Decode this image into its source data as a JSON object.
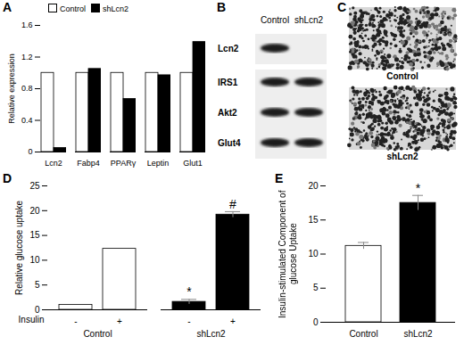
{
  "chart_data": [
    {
      "type": "bar",
      "panel": "A",
      "ylabel": "Relative expression",
      "categories": [
        "Lcn2",
        "Fabp4",
        "PPARγ",
        "Leptin",
        "Glut1"
      ],
      "ylim": [
        0,
        1.6
      ],
      "yticks": [
        0,
        0.4,
        0.8,
        1.2,
        1.6
      ],
      "legend": "top-left",
      "series": [
        {
          "name": "Control",
          "color": "#ffffff",
          "values": [
            1,
            1,
            1,
            1,
            1
          ]
        },
        {
          "name": "shLcn2",
          "color": "#000000",
          "values": [
            0.05,
            1.05,
            0.67,
            0.97,
            1.39
          ]
        }
      ]
    },
    {
      "type": "bar",
      "panel": "D",
      "ylabel": "Relative glucose uptake",
      "x_label": "Insulin",
      "categories": [
        "-",
        "+"
      ],
      "ylim": [
        0,
        25
      ],
      "yticks": [
        0,
        5,
        10,
        15,
        20,
        25
      ],
      "series": [
        {
          "name": "Control",
          "color": "#ffffff",
          "values": [
            1,
            12.3
          ],
          "errors": [
            null,
            null
          ],
          "annotations": [
            null,
            null
          ]
        },
        {
          "name": "shLcn2",
          "color": "#000000",
          "values": [
            1.6,
            19.2
          ],
          "errors": [
            0.5,
            0.6
          ],
          "annotations": [
            "*",
            "#"
          ]
        }
      ]
    },
    {
      "type": "bar",
      "panel": "E",
      "ylabel": "Insulin-stimulated Component of glucose Uptake",
      "categories": [
        "Control",
        "shLcn2"
      ],
      "values": [
        11.2,
        17.5
      ],
      "errors": [
        0.5,
        1.1
      ],
      "colors": [
        "#ffffff",
        "#000000"
      ],
      "annotations": [
        null,
        "*"
      ],
      "ylim": [
        0,
        20
      ],
      "yticks": [
        0,
        5,
        10,
        15,
        20
      ]
    }
  ],
  "blot": {
    "panel": "B",
    "columns": [
      "Control",
      "shLcn2"
    ],
    "rows": [
      "Lcn2",
      "IRS1",
      "Akt2",
      "Glut4"
    ],
    "bands": [
      [
        true,
        false
      ],
      [
        true,
        true
      ],
      [
        true,
        true
      ],
      [
        true,
        true
      ]
    ]
  },
  "images": {
    "panel": "C",
    "labels": [
      "Control",
      "shLcn2"
    ]
  }
}
